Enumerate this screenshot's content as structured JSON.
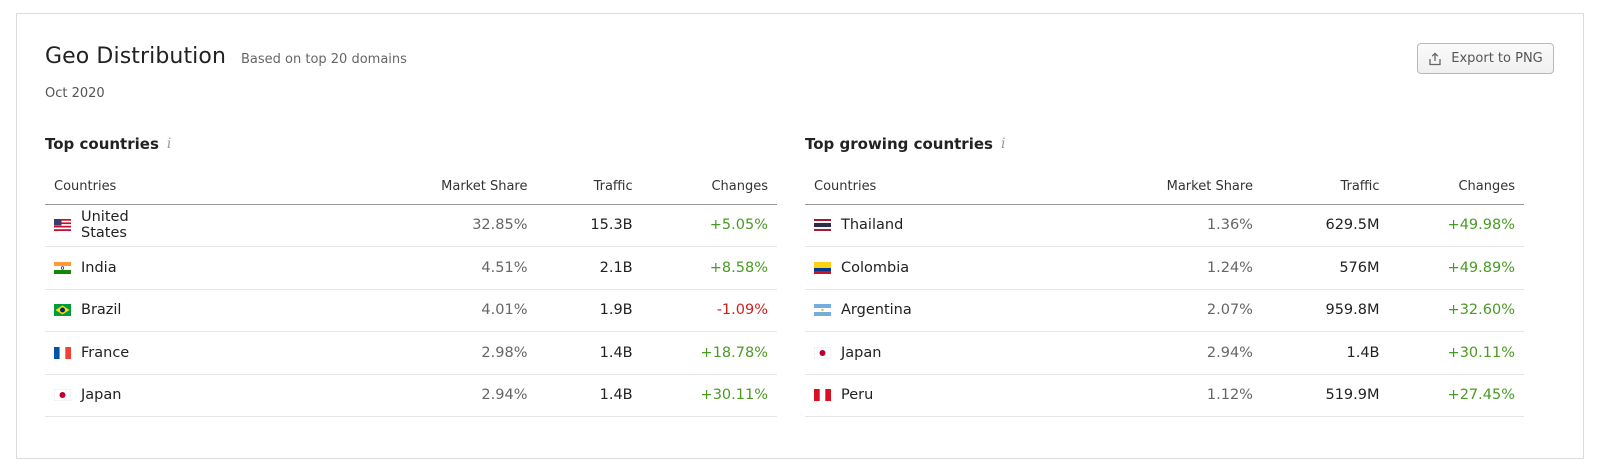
{
  "header": {
    "title": "Geo Distribution",
    "subtitle": "Based on top 20 domains",
    "date": "Oct 2020",
    "export_label": "Export to PNG"
  },
  "columns": {
    "country": "Countries",
    "share": "Market Share",
    "traffic": "Traffic",
    "changes": "Changes"
  },
  "top_countries": {
    "title": "Top countries",
    "info_icon": "i",
    "rows": [
      {
        "flag": "us",
        "name": "United States",
        "share": "32.85%",
        "traffic": "15.3B",
        "change": "+5.05%",
        "trend": "pos"
      },
      {
        "flag": "in",
        "name": "India",
        "share": "4.51%",
        "traffic": "2.1B",
        "change": "+8.58%",
        "trend": "pos"
      },
      {
        "flag": "br",
        "name": "Brazil",
        "share": "4.01%",
        "traffic": "1.9B",
        "change": "-1.09%",
        "trend": "neg"
      },
      {
        "flag": "fr",
        "name": "France",
        "share": "2.98%",
        "traffic": "1.4B",
        "change": "+18.78%",
        "trend": "pos"
      },
      {
        "flag": "jp",
        "name": "Japan",
        "share": "2.94%",
        "traffic": "1.4B",
        "change": "+30.11%",
        "trend": "pos"
      }
    ]
  },
  "top_growing": {
    "title": "Top growing countries",
    "info_icon": "i",
    "rows": [
      {
        "flag": "th",
        "name": "Thailand",
        "share": "1.36%",
        "traffic": "629.5M",
        "change": "+49.98%",
        "trend": "pos"
      },
      {
        "flag": "co",
        "name": "Colombia",
        "share": "1.24%",
        "traffic": "576M",
        "change": "+49.89%",
        "trend": "pos"
      },
      {
        "flag": "ar",
        "name": "Argentina",
        "share": "2.07%",
        "traffic": "959.8M",
        "change": "+32.60%",
        "trend": "pos"
      },
      {
        "flag": "jp",
        "name": "Japan",
        "share": "2.94%",
        "traffic": "1.4B",
        "change": "+30.11%",
        "trend": "pos"
      },
      {
        "flag": "pe",
        "name": "Peru",
        "share": "1.12%",
        "traffic": "519.9M",
        "change": "+27.45%",
        "trend": "pos"
      }
    ]
  },
  "colors": {
    "positive": "#4a9b22",
    "negative": "#d0201b"
  }
}
